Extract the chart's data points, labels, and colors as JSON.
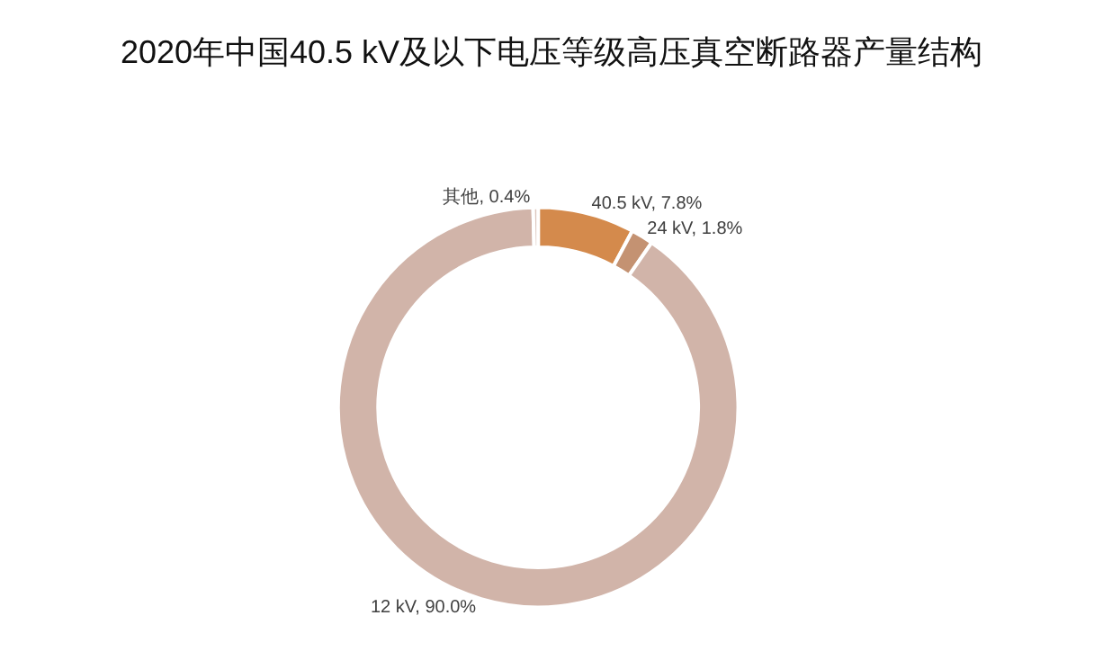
{
  "chart_data": {
    "type": "donut",
    "title": "2020年中国40.5 kV及以下电压等级高压真空断路器产量结构",
    "categories": [
      "40.5 kV",
      "24 kV",
      "12 kV",
      "其他"
    ],
    "values": [
      7.8,
      1.8,
      90.0,
      0.4
    ],
    "value_labels": [
      "7.8%",
      "1.8%",
      "90.0%",
      "0.4%"
    ],
    "colors": [
      "#d48a4c",
      "#c49272",
      "#d1b4a9",
      "#dcc6bd"
    ],
    "legend": false
  }
}
